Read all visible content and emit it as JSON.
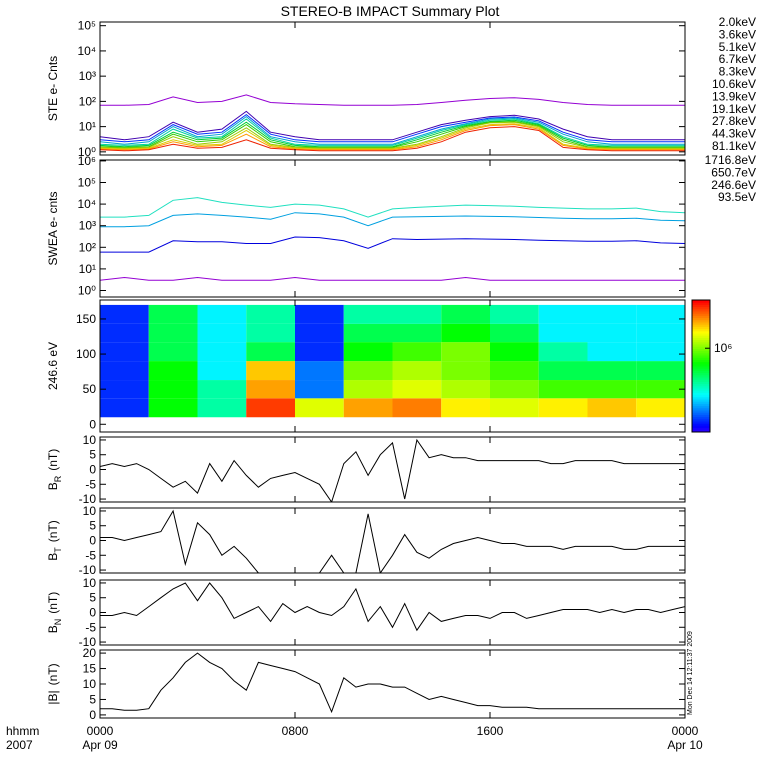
{
  "title": "STEREO-B IMPACT Summary Plot",
  "timestamp": "Mon Dec 14 12:11:37 2009",
  "x_axis": {
    "xlim": [
      0,
      24
    ],
    "xticks": [
      {
        "value": 0,
        "label": "0000"
      },
      {
        "value": 8,
        "label": "0800"
      },
      {
        "value": 16,
        "label": "1600"
      },
      {
        "value": 24,
        "label": "0000"
      }
    ],
    "date_labels": [
      {
        "value": 0,
        "label": "Apr 09"
      },
      {
        "value": 24,
        "label": "Apr 10"
      }
    ],
    "corner_labels": [
      "hhmm",
      "2007"
    ]
  },
  "chart_data": [
    {
      "type": "line",
      "ylabel": "STE e- Cnts",
      "log": true,
      "legend": true,
      "ylim": [
        0.75,
        140000
      ],
      "yticks": [
        {
          "value": 1,
          "label": "10⁰"
        },
        {
          "value": 10,
          "label": "10¹"
        },
        {
          "value": 100,
          "label": "10²"
        },
        {
          "value": 1000,
          "label": "10³"
        },
        {
          "value": 10000,
          "label": "10⁴"
        },
        {
          "value": 100000,
          "label": "10⁵"
        }
      ],
      "x": [
        0,
        1,
        2,
        3,
        4,
        5,
        6,
        7,
        8,
        9,
        10,
        11,
        12,
        13,
        14,
        15,
        16,
        17,
        18,
        19,
        20,
        21,
        22,
        23,
        24
      ],
      "series": [
        {
          "name": "2.0keV",
          "color": "#9400d3",
          "values": [
            70,
            70,
            75,
            150,
            90,
            100,
            180,
            90,
            80,
            75,
            70,
            70,
            70,
            75,
            90,
            110,
            130,
            140,
            120,
            90,
            75,
            70,
            70,
            70,
            70
          ]
        },
        {
          "name": "3.6keV",
          "color": "#4000b0",
          "values": [
            4,
            3,
            4,
            15,
            6,
            8,
            40,
            6,
            4,
            3,
            3,
            3,
            3,
            6,
            12,
            18,
            25,
            28,
            20,
            8,
            4,
            3,
            3,
            3,
            3
          ]
        },
        {
          "name": "5.1keV",
          "color": "#0030ff",
          "values": [
            3,
            2.5,
            3,
            12,
            5,
            6,
            30,
            5,
            3,
            2.5,
            2.5,
            2.5,
            2.5,
            5,
            10,
            15,
            22,
            24,
            17,
            6,
            3,
            2.5,
            2.5,
            2.5,
            2.5
          ]
        },
        {
          "name": "6.7keV",
          "color": "#00a0d0",
          "values": [
            2.5,
            2,
            2.5,
            10,
            4,
            5,
            25,
            4,
            2.5,
            2,
            2,
            2,
            2,
            4,
            8,
            13,
            20,
            22,
            15,
            5,
            2.5,
            2,
            2,
            2,
            2
          ]
        },
        {
          "name": "8.3keV",
          "color": "#00d0a0",
          "values": [
            2,
            1.8,
            2,
            8,
            3.5,
            4,
            20,
            3.5,
            2,
            1.8,
            1.8,
            1.8,
            1.8,
            3.5,
            7,
            12,
            18,
            20,
            13,
            4,
            2,
            1.8,
            1.8,
            1.8,
            1.8
          ]
        },
        {
          "name": "10.6keV",
          "color": "#00cc33",
          "values": [
            1.8,
            1.6,
            1.8,
            6,
            3,
            3.5,
            15,
            3,
            1.8,
            1.6,
            1.6,
            1.6,
            1.6,
            3,
            6,
            11,
            16,
            18,
            12,
            3.5,
            1.8,
            1.6,
            1.6,
            1.6,
            1.6
          ]
        },
        {
          "name": "13.9keV",
          "color": "#33cc00",
          "values": [
            1.6,
            1.5,
            1.6,
            5,
            2.5,
            3,
            12,
            2.5,
            1.6,
            1.5,
            1.5,
            1.5,
            1.5,
            2.5,
            5,
            10,
            15,
            16,
            11,
            3,
            1.6,
            1.5,
            1.5,
            1.5,
            1.5
          ]
        },
        {
          "name": "19.1keV",
          "color": "#99cc00",
          "values": [
            1.5,
            1.4,
            1.5,
            4,
            2,
            2.5,
            9,
            2,
            1.5,
            1.4,
            1.4,
            1.4,
            1.4,
            2,
            4,
            9,
            14,
            15,
            10,
            2.5,
            1.5,
            1.4,
            1.4,
            1.4,
            1.4
          ]
        },
        {
          "name": "27.8keV",
          "color": "#ddcc00",
          "values": [
            1.4,
            1.3,
            1.4,
            3,
            1.8,
            2,
            7,
            1.8,
            1.4,
            1.3,
            1.3,
            1.3,
            1.3,
            1.8,
            3.5,
            8,
            12,
            13,
            9,
            2,
            1.4,
            1.3,
            1.3,
            1.3,
            1.3
          ]
        },
        {
          "name": "44.3keV",
          "color": "#ff9900",
          "values": [
            1.3,
            1.2,
            1.3,
            2.5,
            1.6,
            1.8,
            5,
            1.6,
            1.3,
            1.2,
            1.2,
            1.2,
            1.2,
            1.6,
            3,
            7,
            11,
            12,
            8,
            1.8,
            1.3,
            1.2,
            1.2,
            1.2,
            1.2
          ]
        },
        {
          "name": "81.1keV",
          "color": "#ee2200",
          "values": [
            1.2,
            1.1,
            1.2,
            2,
            1.4,
            1.5,
            3,
            1.4,
            1.2,
            1.1,
            1.1,
            1.1,
            1.1,
            1.4,
            2.5,
            6,
            9,
            10,
            7,
            1.5,
            1.2,
            1.1,
            1.1,
            1.1,
            1.1
          ]
        }
      ]
    },
    {
      "type": "line",
      "ylabel": "SWEA e- cnts",
      "log": true,
      "legend": true,
      "ylim": [
        0.5,
        1100000
      ],
      "yticks": [
        {
          "value": 1,
          "label": "10⁰"
        },
        {
          "value": 10,
          "label": "10¹"
        },
        {
          "value": 100,
          "label": "10²"
        },
        {
          "value": 1000,
          "label": "10³"
        },
        {
          "value": 10000,
          "label": "10⁴"
        },
        {
          "value": 100000,
          "label": "10⁵"
        },
        {
          "value": 1000000,
          "label": "10⁶"
        }
      ],
      "x": [
        0,
        1,
        2,
        3,
        4,
        5,
        6,
        7,
        8,
        9,
        10,
        11,
        12,
        13,
        14,
        15,
        16,
        17,
        18,
        19,
        20,
        21,
        22,
        23,
        24
      ],
      "series": [
        {
          "name": "1716.8eV",
          "color": "#9400d3",
          "values": [
            3,
            4,
            3,
            3,
            4,
            3,
            3,
            3,
            4,
            3,
            3,
            3,
            3,
            3,
            3,
            4,
            3,
            3,
            3,
            3,
            3,
            3,
            3,
            3,
            3
          ]
        },
        {
          "name": "650.7eV",
          "color": "#0000dd",
          "values": [
            60,
            60,
            60,
            200,
            180,
            180,
            150,
            150,
            300,
            280,
            200,
            90,
            250,
            230,
            240,
            250,
            240,
            230,
            210,
            200,
            190,
            190,
            200,
            160,
            150
          ]
        },
        {
          "name": "246.6eV",
          "color": "#00a0e0",
          "values": [
            900,
            900,
            1000,
            3000,
            3500,
            3000,
            2500,
            2000,
            4000,
            3500,
            2500,
            1000,
            2500,
            2600,
            2700,
            2800,
            2700,
            2600,
            2400,
            2200,
            2100,
            2100,
            2200,
            1800,
            1700
          ]
        },
        {
          "name": "93.5eV",
          "color": "#20e0c0",
          "values": [
            2500,
            2500,
            3000,
            15000,
            20000,
            12000,
            9000,
            7000,
            10000,
            9000,
            6000,
            2500,
            6000,
            7000,
            8000,
            9000,
            8500,
            8000,
            7000,
            6500,
            6000,
            6000,
            6500,
            4500,
            4000
          ]
        }
      ]
    },
    {
      "type": "heatmap",
      "ylabel": "246.6 eV",
      "ylim": [
        -11,
        177
      ],
      "yticks": [
        0,
        50,
        100,
        150
      ],
      "x_bins": [
        0,
        2,
        4,
        6,
        8,
        10,
        12,
        14,
        16,
        18,
        20,
        22,
        24
      ],
      "y_bins": [
        10,
        37,
        63,
        90,
        117,
        143,
        170
      ],
      "zlim": [
        300000,
        2000000
      ],
      "zlog": true,
      "zticks": [
        {
          "value": 1000000,
          "label": "10⁶"
        }
      ],
      "values": [
        [
          350000,
          350000,
          350000,
          350000,
          350000,
          350000
        ],
        [
          800000,
          800000,
          800000,
          700000,
          700000,
          700000
        ],
        [
          600000,
          600000,
          500000,
          500000,
          500000,
          500000
        ],
        [
          1800000,
          1500000,
          1400000,
          700000,
          600000,
          600000
        ],
        [
          1200000,
          400000,
          400000,
          350000,
          350000,
          350000
        ],
        [
          1500000,
          1100000,
          1000000,
          800000,
          700000,
          600000
        ],
        [
          1600000,
          1200000,
          1100000,
          900000,
          700000,
          600000
        ],
        [
          1300000,
          1100000,
          1000000,
          1000000,
          800000,
          700000
        ],
        [
          1200000,
          1000000,
          900000,
          800000,
          700000,
          600000
        ],
        [
          1300000,
          900000,
          700000,
          600000,
          500000,
          500000
        ],
        [
          1400000,
          900000,
          700000,
          500000,
          500000,
          500000
        ],
        [
          1300000,
          900000,
          700000,
          500000,
          500000,
          500000
        ]
      ]
    },
    {
      "type": "line",
      "ylabel": "B",
      "ylabel_sub": "R",
      "ylabel_unit": "(nT)",
      "ylim": [
        -11,
        11
      ],
      "yticks": [
        -10,
        -5,
        0,
        5,
        10
      ],
      "x": [
        0,
        0.5,
        1,
        1.5,
        2,
        2.5,
        3,
        3.5,
        4,
        4.5,
        5,
        5.5,
        6,
        6.5,
        7,
        7.5,
        8,
        8.5,
        9,
        9.5,
        10,
        10.5,
        11,
        11.5,
        12,
        12.5,
        13,
        13.5,
        14,
        14.5,
        15,
        15.5,
        16,
        16.5,
        17,
        17.5,
        18,
        18.5,
        19,
        19.5,
        20,
        20.5,
        21,
        21.5,
        22,
        22.5,
        23,
        23.5,
        24
      ],
      "series": [
        {
          "color": "#000000",
          "values": [
            1,
            2,
            1,
            2,
            0,
            -3,
            -6,
            -4,
            -8,
            2,
            -4,
            3,
            -2,
            -6,
            -3,
            -2,
            -1,
            -3,
            -5,
            -11,
            2,
            6,
            -2,
            5,
            9,
            -10,
            10,
            4,
            5,
            4,
            4,
            3,
            3,
            3,
            3,
            3,
            3,
            2,
            2,
            3,
            3,
            3,
            3,
            2,
            2,
            2,
            2,
            2,
            2
          ]
        }
      ]
    },
    {
      "type": "line",
      "ylabel": "B",
      "ylabel_sub": "T",
      "ylabel_unit": "(nT)",
      "ylim": [
        -11,
        11
      ],
      "yticks": [
        -10,
        -5,
        0,
        5,
        10
      ],
      "x": [
        0,
        0.5,
        1,
        1.5,
        2,
        2.5,
        3,
        3.5,
        4,
        4.5,
        5,
        5.5,
        6,
        6.5,
        7,
        7.5,
        8,
        8.5,
        9,
        9.5,
        10,
        10.5,
        11,
        11.5,
        12,
        12.5,
        13,
        13.5,
        14,
        14.5,
        15,
        15.5,
        16,
        16.5,
        17,
        17.5,
        18,
        18.5,
        19,
        19.5,
        20,
        20.5,
        21,
        21.5,
        22,
        22.5,
        23,
        23.5,
        24
      ],
      "series": [
        {
          "color": "#000000",
          "values": [
            1,
            1,
            0,
            1,
            2,
            3,
            10,
            -8,
            6,
            2,
            -5,
            -2,
            -6,
            -11,
            -11,
            -11,
            -11,
            -11,
            -11,
            -5,
            -11,
            -11,
            9,
            -11,
            -5,
            2,
            -4,
            -6,
            -3,
            -1,
            0,
            1,
            0,
            -1,
            -1,
            -2,
            -2,
            -2,
            -3,
            -2,
            -2,
            -2,
            -2,
            -3,
            -3,
            -2,
            -2,
            -2,
            -2
          ]
        }
      ]
    },
    {
      "type": "line",
      "ylabel": "B",
      "ylabel_sub": "N",
      "ylabel_unit": "(nT)",
      "ylim": [
        -11,
        11
      ],
      "yticks": [
        -10,
        -5,
        0,
        5,
        10
      ],
      "x": [
        0,
        0.5,
        1,
        1.5,
        2,
        2.5,
        3,
        3.5,
        4,
        4.5,
        5,
        5.5,
        6,
        6.5,
        7,
        7.5,
        8,
        8.5,
        9,
        9.5,
        10,
        10.5,
        11,
        11.5,
        12,
        12.5,
        13,
        13.5,
        14,
        14.5,
        15,
        15.5,
        16,
        16.5,
        17,
        17.5,
        18,
        18.5,
        19,
        19.5,
        20,
        20.5,
        21,
        21.5,
        22,
        22.5,
        23,
        23.5,
        24
      ],
      "series": [
        {
          "color": "#000000",
          "values": [
            -1,
            -1,
            0,
            -1,
            2,
            5,
            8,
            10,
            4,
            10,
            5,
            -2,
            0,
            2,
            -3,
            3,
            0,
            2,
            0,
            -1,
            2,
            8,
            -3,
            2,
            -5,
            3,
            -6,
            0,
            -3,
            -2,
            -1,
            -1,
            -2,
            0,
            0,
            -2,
            -1,
            0,
            1,
            1,
            1,
            0,
            1,
            0,
            1,
            1,
            0,
            1,
            2
          ]
        }
      ]
    },
    {
      "type": "line",
      "ylabel": "|B|",
      "ylabel_unit": "(nT)",
      "ylim": [
        -1,
        21
      ],
      "yticks": [
        0,
        5,
        10,
        15,
        20
      ],
      "x": [
        0,
        0.5,
        1,
        1.5,
        2,
        2.5,
        3,
        3.5,
        4,
        4.5,
        5,
        5.5,
        6,
        6.5,
        7,
        7.5,
        8,
        8.5,
        9,
        9.5,
        10,
        10.5,
        11,
        11.5,
        12,
        12.5,
        13,
        13.5,
        14,
        14.5,
        15,
        15.5,
        16,
        16.5,
        17,
        17.5,
        18,
        18.5,
        19,
        19.5,
        20,
        20.5,
        21,
        21.5,
        22,
        22.5,
        23,
        23.5,
        24
      ],
      "series": [
        {
          "color": "#000000",
          "values": [
            2,
            2,
            1.5,
            1.5,
            2,
            8,
            12,
            17,
            20,
            17,
            15,
            11,
            8,
            17,
            16,
            15,
            14,
            12,
            10,
            1,
            12,
            9,
            10,
            10,
            9,
            9,
            7,
            5,
            6,
            5,
            4,
            3,
            3,
            2.5,
            2.5,
            2.5,
            2,
            2,
            2,
            2,
            2,
            2,
            2,
            2,
            2,
            2,
            2,
            2,
            2
          ]
        }
      ]
    }
  ]
}
